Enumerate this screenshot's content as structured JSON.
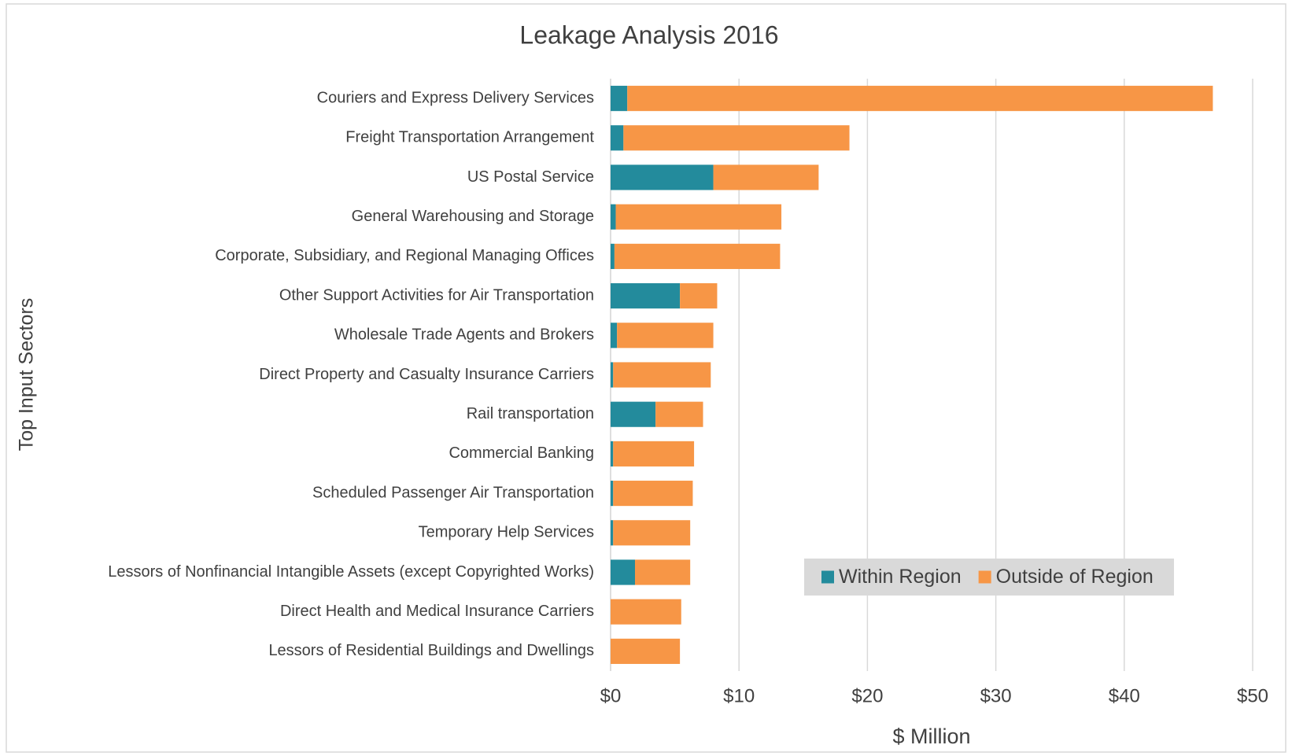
{
  "chart_data": {
    "type": "stacked_barh",
    "title": "Leakage Analysis 2016",
    "x_label": "$ Million",
    "y_label": "Top Input Sectors",
    "categories": [
      "Couriers and Express Delivery Services",
      "Freight Transportation Arrangement",
      "US Postal Service",
      "General Warehousing and Storage",
      "Corporate, Subsidiary, and Regional Managing Offices",
      "Other Support Activities for Air Transportation",
      "Wholesale Trade Agents and Brokers",
      "Direct Property and Casualty Insurance Carriers",
      "Rail transportation",
      "Commercial Banking",
      "Scheduled Passenger Air Transportation",
      "Temporary Help Services",
      "Lessors of Nonfinancial Intangible Assets (except Copyrighted Works)",
      "Direct Health and Medical Insurance Carriers",
      "Lessors of Residential Buildings and Dwellings"
    ],
    "series": [
      {
        "name": "Within Region",
        "color": "#238b9c",
        "values": [
          1.3,
          1.0,
          8.0,
          0.4,
          0.3,
          5.4,
          0.5,
          0.2,
          3.5,
          0.2,
          0.2,
          0.2,
          1.9,
          0,
          0
        ]
      },
      {
        "name": "Outside of Region",
        "color": "#f79646",
        "values": [
          45.6,
          17.6,
          8.2,
          12.9,
          12.9,
          2.9,
          7.5,
          7.6,
          3.7,
          6.3,
          6.2,
          6.0,
          4.3,
          5.5,
          5.4
        ]
      }
    ],
    "xlim": [
      0,
      50
    ],
    "xticks": [
      {
        "value": 0,
        "label": "$0"
      },
      {
        "value": 10,
        "label": "$10"
      },
      {
        "value": 20,
        "label": "$20"
      },
      {
        "value": 30,
        "label": "$30"
      },
      {
        "value": 40,
        "label": "$40"
      },
      {
        "value": 50,
        "label": "$50"
      }
    ],
    "grid": true,
    "legend": "lower right"
  }
}
